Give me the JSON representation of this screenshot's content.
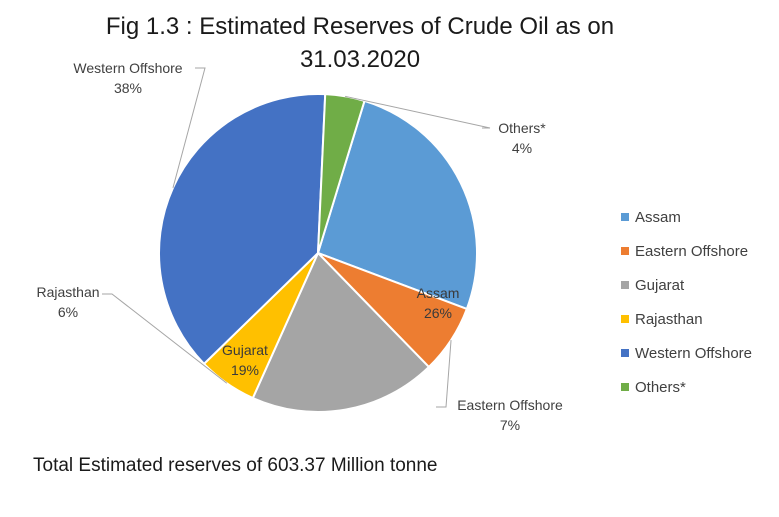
{
  "chart_data": {
    "type": "pie",
    "title_line1": "Fig 1.3 : Estimated Reserves of Crude Oil as on",
    "title_line2": "31.03.2020",
    "footnote": "Total Estimated reserves  of 603.37 Million tonne",
    "legend_position": "right",
    "slices": [
      {
        "name": "Assam",
        "value": 26,
        "label": "26%",
        "color": "#5B9BD5"
      },
      {
        "name": "Eastern Offshore",
        "value": 7,
        "label": "7%",
        "color": "#ED7D31"
      },
      {
        "name": "Gujarat",
        "value": 19,
        "label": "19%",
        "color": "#A5A5A5"
      },
      {
        "name": "Rajasthan",
        "value": 6,
        "label": "6%",
        "color": "#FFC000"
      },
      {
        "name": "Western Offshore",
        "value": 38,
        "label": "38%",
        "color": "#4472C4"
      },
      {
        "name": "Others*",
        "value": 4,
        "label": "4%",
        "color": "#70AD47"
      }
    ]
  }
}
